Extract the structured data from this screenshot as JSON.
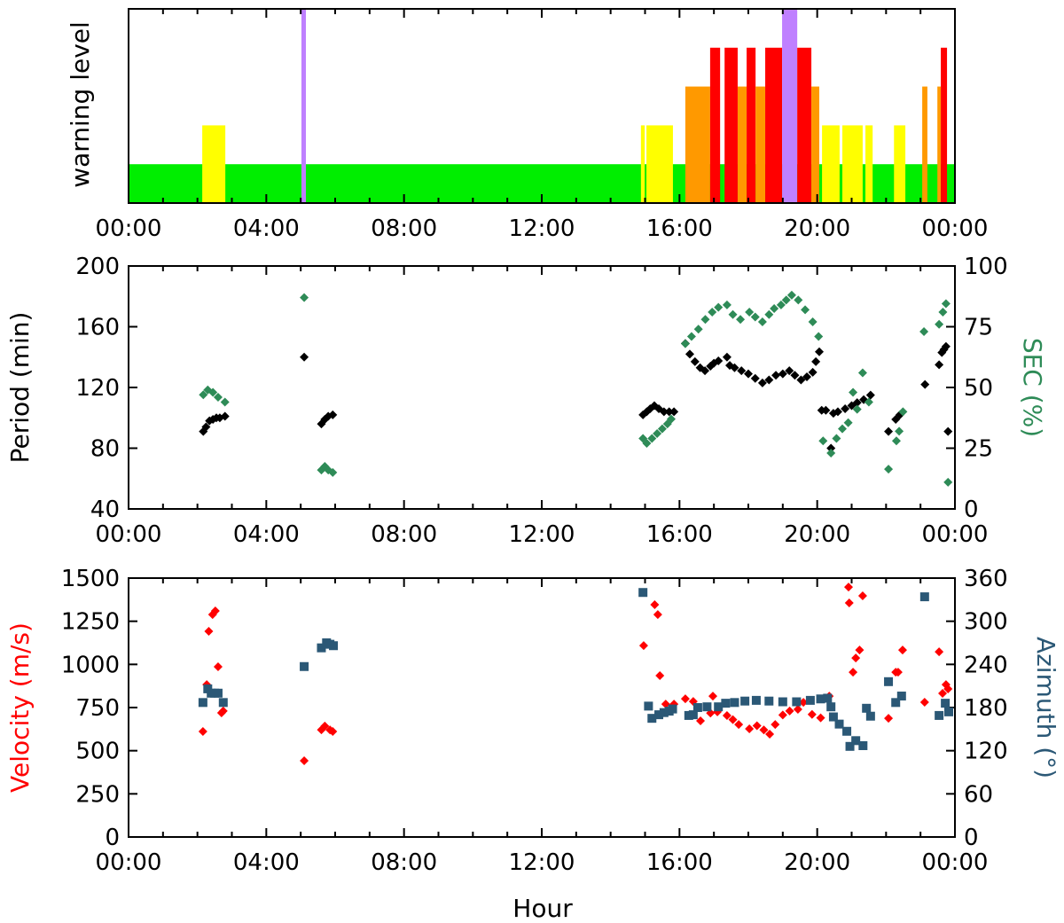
{
  "chart_data": [
    {
      "type": "bar",
      "ylabel": "warning level",
      "xlim_hours": [
        0,
        24
      ],
      "ylim": [
        0,
        5
      ],
      "x_tick_labels": [
        "00:00",
        "04:00",
        "08:00",
        "12:00",
        "16:00",
        "20:00",
        "00:00"
      ],
      "level_colors": {
        "1": "#00ee00",
        "2": "#ffff00",
        "3": "#ff9900",
        "4": "#ff0000",
        "5": "#bf80ff"
      },
      "baseline_level": 1,
      "segments": [
        [
          2.14,
          2.81,
          2
        ],
        [
          5.02,
          5.15,
          5
        ],
        [
          14.88,
          14.99,
          2
        ],
        [
          15.04,
          15.81,
          2
        ],
        [
          16.17,
          16.89,
          3
        ],
        [
          16.89,
          17.18,
          4
        ],
        [
          17.31,
          17.69,
          4
        ],
        [
          17.69,
          17.95,
          3
        ],
        [
          17.95,
          18.21,
          4
        ],
        [
          18.21,
          18.49,
          3
        ],
        [
          18.49,
          18.98,
          4
        ],
        [
          18.98,
          19.42,
          5
        ],
        [
          19.42,
          19.83,
          4
        ],
        [
          19.83,
          20.06,
          3
        ],
        [
          20.14,
          20.65,
          2
        ],
        [
          20.73,
          21.32,
          2
        ],
        [
          21.4,
          21.61,
          2
        ],
        [
          22.23,
          22.56,
          2
        ],
        [
          23.05,
          23.2,
          3
        ],
        [
          23.49,
          23.59,
          3
        ],
        [
          23.59,
          23.77,
          4
        ]
      ]
    },
    {
      "type": "scatter",
      "ylabel": "Period (min)",
      "ylabel_right": "SEC (%)",
      "ylim": [
        40,
        200
      ],
      "ylim_right": [
        0,
        100
      ],
      "y_ticks": [
        40,
        80,
        120,
        160,
        200
      ],
      "y_ticks_right": [
        0,
        25,
        50,
        75,
        100
      ],
      "x_tick_labels": [
        "00:00",
        "04:00",
        "08:00",
        "12:00",
        "16:00",
        "20:00",
        "00:00"
      ],
      "series": [
        {
          "axis": "left",
          "color": "#000000",
          "points": [
            [
              2.17,
              91
            ],
            [
              2.25,
              94
            ],
            [
              2.35,
              98
            ],
            [
              2.45,
              99
            ],
            [
              2.55,
              100
            ],
            [
              2.65,
              100
            ],
            [
              2.8,
              101
            ],
            [
              5.1,
              140
            ],
            [
              5.6,
              96
            ],
            [
              5.7,
              99
            ],
            [
              5.8,
              101
            ],
            [
              5.93,
              102
            ],
            [
              14.94,
              102
            ],
            [
              15.05,
              104
            ],
            [
              15.15,
              106
            ],
            [
              15.27,
              108
            ],
            [
              15.4,
              106
            ],
            [
              15.55,
              104
            ],
            [
              15.7,
              104
            ],
            [
              15.84,
              104
            ],
            [
              16.17,
              149
            ],
            [
              16.3,
              142
            ],
            [
              16.45,
              137
            ],
            [
              16.6,
              133
            ],
            [
              16.74,
              131
            ],
            [
              16.9,
              134
            ],
            [
              17.0,
              136
            ],
            [
              17.13,
              137.5
            ],
            [
              17.38,
              140
            ],
            [
              17.46,
              134.5
            ],
            [
              17.6,
              133
            ],
            [
              17.8,
              131
            ],
            [
              18.0,
              129
            ],
            [
              18.2,
              126
            ],
            [
              18.41,
              123
            ],
            [
              18.6,
              125
            ],
            [
              18.8,
              128
            ],
            [
              19.0,
              129
            ],
            [
              19.19,
              131
            ],
            [
              19.35,
              128
            ],
            [
              19.53,
              125
            ],
            [
              19.7,
              127
            ],
            [
              19.87,
              130
            ],
            [
              19.96,
              137
            ],
            [
              20.06,
              143.5
            ],
            [
              20.13,
              105
            ],
            [
              20.25,
              105
            ],
            [
              20.4,
              80
            ],
            [
              20.47,
              103
            ],
            [
              20.6,
              104
            ],
            [
              20.81,
              106
            ],
            [
              21.0,
              108
            ],
            [
              21.16,
              110
            ],
            [
              21.35,
              112
            ],
            [
              21.55,
              115
            ],
            [
              22.07,
              91
            ],
            [
              22.28,
              99
            ],
            [
              22.4,
              102
            ],
            [
              23.13,
              122
            ],
            [
              23.54,
              135
            ],
            [
              23.62,
              143
            ],
            [
              23.68,
              145
            ],
            [
              23.74,
              147
            ],
            [
              23.8,
              91
            ]
          ]
        },
        {
          "axis": "right",
          "color": "#2e8b57",
          "points": [
            [
              2.17,
              47
            ],
            [
              2.3,
              49
            ],
            [
              2.45,
              48
            ],
            [
              2.6,
              46
            ],
            [
              2.8,
              44
            ],
            [
              5.1,
              87
            ],
            [
              5.6,
              16
            ],
            [
              5.7,
              17.5
            ],
            [
              5.8,
              16
            ],
            [
              5.93,
              15
            ],
            [
              14.94,
              29
            ],
            [
              15.05,
              27
            ],
            [
              15.2,
              29
            ],
            [
              15.35,
              31
            ],
            [
              15.5,
              33
            ],
            [
              15.65,
              35
            ],
            [
              15.76,
              37
            ],
            [
              16.17,
              68
            ],
            [
              16.35,
              71
            ],
            [
              16.55,
              74
            ],
            [
              16.75,
              78
            ],
            [
              16.95,
              81
            ],
            [
              17.13,
              83
            ],
            [
              17.38,
              84
            ],
            [
              17.55,
              80
            ],
            [
              17.77,
              78
            ],
            [
              18.03,
              81
            ],
            [
              18.2,
              79
            ],
            [
              18.41,
              77
            ],
            [
              18.6,
              80
            ],
            [
              18.75,
              82.5
            ],
            [
              18.95,
              84
            ],
            [
              19.1,
              86
            ],
            [
              19.26,
              88
            ],
            [
              19.45,
              86
            ],
            [
              19.65,
              82
            ],
            [
              19.87,
              77
            ],
            [
              20.04,
              71
            ],
            [
              20.17,
              28
            ],
            [
              20.4,
              23
            ],
            [
              20.56,
              29
            ],
            [
              20.73,
              33
            ],
            [
              20.9,
              35.5
            ],
            [
              21.04,
              48
            ],
            [
              21.16,
              41
            ],
            [
              21.32,
              56
            ],
            [
              21.5,
              44
            ],
            [
              22.07,
              16.4
            ],
            [
              22.3,
              28
            ],
            [
              22.38,
              32
            ],
            [
              22.49,
              40
            ],
            [
              23.1,
              73
            ],
            [
              23.54,
              76
            ],
            [
              23.65,
              81
            ],
            [
              23.74,
              84.5
            ],
            [
              23.8,
              11
            ]
          ]
        }
      ]
    },
    {
      "type": "scatter",
      "xlabel": "Hour",
      "ylabel": "Velocity (m/s)",
      "ylabel_right": "Azimuth (°)",
      "ylim": [
        0,
        1500
      ],
      "ylim_right": [
        0,
        360
      ],
      "y_ticks": [
        0,
        250,
        500,
        750,
        1000,
        1250,
        1500
      ],
      "y_ticks_right": [
        0,
        60,
        120,
        180,
        240,
        300,
        360
      ],
      "x_tick_labels": [
        "00:00",
        "04:00",
        "08:00",
        "12:00",
        "16:00",
        "20:00",
        "00:00"
      ],
      "series": [
        {
          "axis": "left",
          "color": "#ff0000",
          "marker": "diamond",
          "points": [
            [
              2.16,
              611
            ],
            [
              2.27,
              883
            ],
            [
              2.33,
              1192
            ],
            [
              2.44,
              1289
            ],
            [
              2.52,
              1310
            ],
            [
              2.6,
              986
            ],
            [
              2.7,
              719
            ],
            [
              2.75,
              730
            ],
            [
              5.1,
              442
            ],
            [
              5.6,
              621
            ],
            [
              5.7,
              643
            ],
            [
              5.85,
              620
            ],
            [
              5.93,
              611
            ],
            [
              14.96,
              1109
            ],
            [
              15.28,
              1346
            ],
            [
              15.37,
              1289
            ],
            [
              15.43,
              935
            ],
            [
              15.6,
              770
            ],
            [
              15.84,
              770
            ],
            [
              16.17,
              801
            ],
            [
              16.4,
              785
            ],
            [
              16.61,
              673
            ],
            [
              16.9,
              718
            ],
            [
              16.97,
              816
            ],
            [
              17.1,
              725
            ],
            [
              17.38,
              704
            ],
            [
              17.55,
              680
            ],
            [
              17.72,
              652
            ],
            [
              18.03,
              627
            ],
            [
              18.25,
              645
            ],
            [
              18.45,
              620
            ],
            [
              18.62,
              596
            ],
            [
              18.78,
              652
            ],
            [
              19.0,
              707
            ],
            [
              19.2,
              730
            ],
            [
              19.44,
              740
            ],
            [
              19.6,
              780
            ],
            [
              19.85,
              710
            ],
            [
              20.1,
              690
            ],
            [
              20.35,
              816
            ],
            [
              20.91,
              1448
            ],
            [
              20.93,
              1356
            ],
            [
              21.04,
              955
            ],
            [
              21.12,
              1037
            ],
            [
              21.23,
              1083
            ],
            [
              21.32,
              1397
            ],
            [
              22.07,
              688
            ],
            [
              22.28,
              955
            ],
            [
              22.35,
              955
            ],
            [
              22.48,
              1083
            ],
            [
              23.12,
              781
            ],
            [
              23.54,
              1073
            ],
            [
              23.64,
              832
            ],
            [
              23.74,
              883
            ],
            [
              23.8,
              858
            ]
          ]
        },
        {
          "axis": "right",
          "color": "#2b5876",
          "marker": "square",
          "points": [
            [
              2.16,
              187
            ],
            [
              2.3,
              206
            ],
            [
              2.4,
              200
            ],
            [
              2.5,
              200
            ],
            [
              2.6,
              200
            ],
            [
              2.75,
              187
            ],
            [
              5.1,
              237
            ],
            [
              5.6,
              263
            ],
            [
              5.75,
              270
            ],
            [
              5.85,
              268
            ],
            [
              5.95,
              266
            ],
            [
              14.94,
              340
            ],
            [
              15.1,
              182
            ],
            [
              15.2,
              165
            ],
            [
              15.4,
              170
            ],
            [
              15.55,
              173
            ],
            [
              15.7,
              175
            ],
            [
              15.8,
              178
            ],
            [
              16.27,
              169
            ],
            [
              16.4,
              170
            ],
            [
              16.53,
              180
            ],
            [
              16.8,
              181
            ],
            [
              17.13,
              181
            ],
            [
              17.34,
              186
            ],
            [
              17.6,
              187
            ],
            [
              17.9,
              189
            ],
            [
              18.23,
              190
            ],
            [
              18.6,
              189
            ],
            [
              19.0,
              188
            ],
            [
              19.4,
              188
            ],
            [
              19.8,
              190
            ],
            [
              20.1,
              192
            ],
            [
              20.3,
              193
            ],
            [
              20.4,
              181
            ],
            [
              20.47,
              167
            ],
            [
              20.64,
              157
            ],
            [
              20.86,
              147
            ],
            [
              20.95,
              126
            ],
            [
              21.12,
              134
            ],
            [
              21.33,
              127
            ],
            [
              21.43,
              179
            ],
            [
              21.55,
              168
            ],
            [
              22.07,
              216
            ],
            [
              22.28,
              187
            ],
            [
              22.45,
              196
            ],
            [
              23.12,
              334
            ],
            [
              23.54,
              169
            ],
            [
              23.72,
              186
            ],
            [
              23.82,
              174
            ]
          ]
        }
      ]
    }
  ]
}
